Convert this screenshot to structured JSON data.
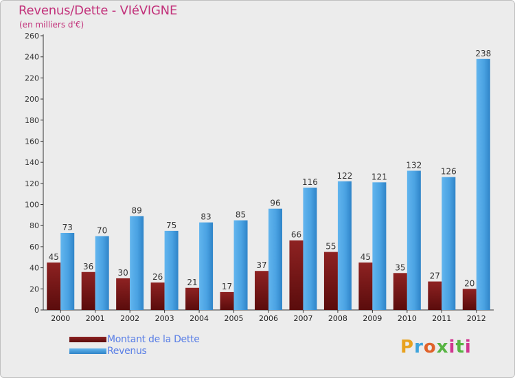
{
  "chart_data": {
    "type": "bar",
    "title": "Revenus/Dette - VIéVIGNE",
    "subtitle": "(en milliers d'€)",
    "categories": [
      "2000",
      "2001",
      "2002",
      "2003",
      "2004",
      "2005",
      "2006",
      "2007",
      "2008",
      "2009",
      "2010",
      "2011",
      "2012"
    ],
    "series": [
      {
        "name": "Montant de la Dette",
        "color": "#7a1818",
        "values": [
          45,
          36,
          30,
          26,
          21,
          17,
          37,
          66,
          55,
          45,
          35,
          27,
          20
        ]
      },
      {
        "name": "Revenus",
        "color": "#4da6e6",
        "values": [
          73,
          70,
          89,
          75,
          83,
          85,
          96,
          116,
          122,
          121,
          132,
          126,
          238
        ]
      }
    ],
    "ylim": [
      0,
      260
    ],
    "yticks": [
      0,
      20,
      40,
      60,
      80,
      100,
      120,
      140,
      160,
      180,
      200,
      220,
      240,
      260
    ],
    "grid": false,
    "legend_position": "bottom-left"
  },
  "logo": {
    "text": "Proxiti"
  }
}
